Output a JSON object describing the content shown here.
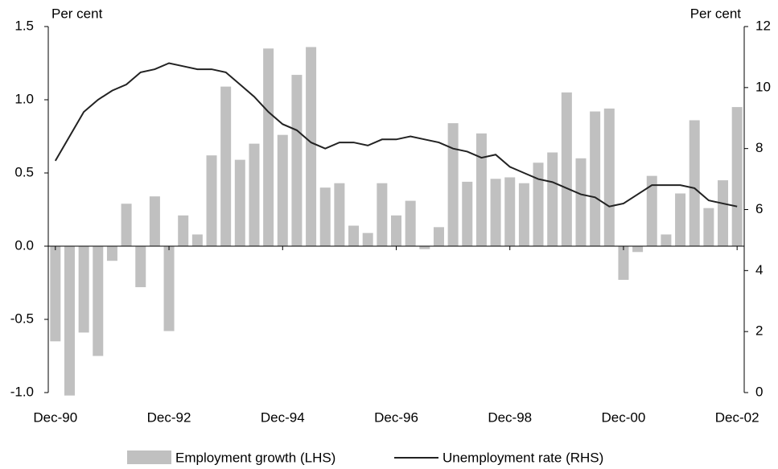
{
  "chart_data": {
    "type": "bar_line",
    "ylabel": "Per cent",
    "y2label": "Per cent",
    "categories": [
      "Dec-90",
      null,
      null,
      null,
      null,
      null,
      null,
      null,
      "Dec-92",
      null,
      null,
      null,
      null,
      null,
      null,
      null,
      "Dec-94",
      null,
      null,
      null,
      null,
      null,
      null,
      null,
      "Dec-96",
      null,
      null,
      null,
      null,
      null,
      null,
      null,
      "Dec-98",
      null,
      null,
      null,
      null,
      null,
      null,
      null,
      "Dec-00",
      null,
      null,
      null,
      null,
      null,
      null,
      null,
      "Dec-02"
    ],
    "series": [
      {
        "name": "Employment growth (LHS)",
        "type": "bar",
        "color": "#c0c0c0",
        "values": [
          -0.65,
          -1.02,
          -0.59,
          -0.75,
          -0.1,
          0.29,
          -0.28,
          0.34,
          -0.58,
          0.21,
          0.08,
          0.62,
          1.09,
          0.59,
          0.7,
          1.35,
          0.76,
          1.17,
          1.36,
          0.4,
          0.43,
          0.14,
          0.09,
          0.43,
          0.21,
          0.31,
          -0.02,
          0.13,
          0.84,
          0.44,
          0.77,
          0.46,
          0.47,
          0.43,
          0.57,
          0.64,
          1.05,
          0.6,
          0.92,
          0.94,
          -0.23,
          -0.04,
          0.48,
          0.08,
          0.36,
          0.86,
          0.26,
          0.45,
          0.95
        ]
      },
      {
        "name": "Unemployment rate (RHS)",
        "type": "line",
        "axis": "y2",
        "color": "#222222",
        "values": [
          7.6,
          8.4,
          9.2,
          9.6,
          9.9,
          10.1,
          10.5,
          10.6,
          10.8,
          10.7,
          10.6,
          10.6,
          10.5,
          10.1,
          9.7,
          9.2,
          8.8,
          8.6,
          8.2,
          8.0,
          8.2,
          8.2,
          8.1,
          8.3,
          8.3,
          8.4,
          8.3,
          8.2,
          8.0,
          7.9,
          7.7,
          7.8,
          7.4,
          7.2,
          7.0,
          6.9,
          6.7,
          6.5,
          6.4,
          6.1,
          6.2,
          6.5,
          6.8,
          6.8,
          6.8,
          6.7,
          6.3,
          6.2,
          6.1
        ]
      }
    ],
    "ylim": [
      -1.0,
      1.5
    ],
    "yticks": [
      {
        "value": -1.0,
        "label": "-1.0"
      },
      -0.5,
      {
        "value": 0,
        "label": "0.0"
      },
      0.5,
      {
        "value": 1,
        "label": "1.0"
      },
      1.5
    ],
    "y2lim": [
      0,
      12
    ],
    "y2ticks": [
      0,
      2,
      4,
      6,
      8,
      10,
      12
    ],
    "legend": "bottom"
  }
}
